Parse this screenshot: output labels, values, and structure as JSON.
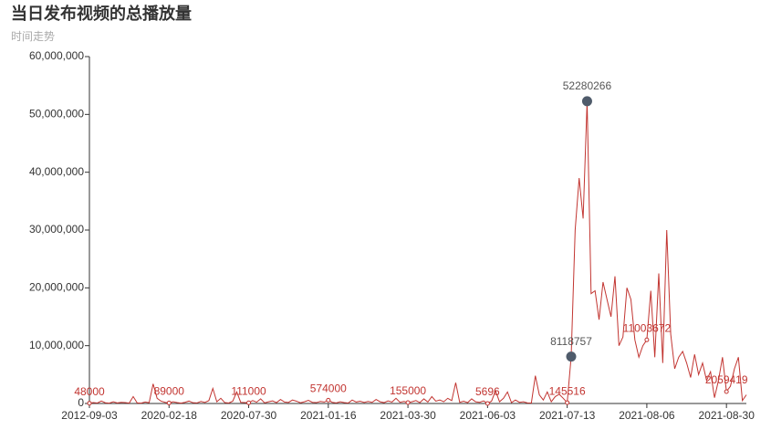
{
  "chart_data": {
    "type": "line",
    "title": "当日发布视频的总播放量",
    "subtitle": "时间走势",
    "color": "#c23531",
    "categories": [
      "2012-09-03",
      null,
      null,
      null,
      null,
      null,
      null,
      null,
      null,
      null,
      null,
      null,
      null,
      null,
      null,
      null,
      null,
      null,
      null,
      null,
      "2020-02-18",
      null,
      null,
      null,
      null,
      null,
      null,
      null,
      null,
      null,
      null,
      null,
      null,
      null,
      null,
      null,
      null,
      null,
      null,
      null,
      "2020-07-30",
      null,
      null,
      null,
      null,
      null,
      null,
      null,
      null,
      null,
      null,
      null,
      null,
      null,
      null,
      null,
      null,
      null,
      null,
      null,
      "2021-01-16",
      null,
      null,
      null,
      null,
      null,
      null,
      null,
      null,
      null,
      null,
      null,
      null,
      null,
      null,
      null,
      null,
      null,
      null,
      null,
      "2021-03-30",
      null,
      null,
      null,
      null,
      null,
      null,
      null,
      null,
      null,
      null,
      null,
      null,
      null,
      null,
      null,
      null,
      null,
      null,
      null,
      "2021-06-03",
      null,
      null,
      null,
      null,
      null,
      null,
      null,
      null,
      null,
      null,
      null,
      null,
      null,
      null,
      null,
      null,
      null,
      null,
      null,
      "2021-07-13",
      null,
      null,
      null,
      null,
      null,
      null,
      null,
      null,
      null,
      null,
      null,
      null,
      null,
      null,
      null,
      null,
      null,
      null,
      null,
      "2021-08-06",
      null,
      null,
      null,
      null,
      null,
      null,
      null,
      null,
      null,
      null,
      null,
      null,
      null,
      null,
      null,
      null,
      null,
      null,
      null,
      "2021-08-30",
      null,
      null,
      null,
      null,
      null
    ],
    "values": [
      48000,
      150000,
      80000,
      420000,
      120000,
      60000,
      300000,
      90000,
      200000,
      150000,
      70000,
      1200000,
      100000,
      60000,
      250000,
      130000,
      3400000,
      900000,
      400000,
      200000,
      89000,
      300000,
      150000,
      60000,
      200000,
      420000,
      130000,
      90000,
      350000,
      180000,
      500000,
      2600000,
      300000,
      900000,
      150000,
      80000,
      400000,
      2000000,
      200000,
      150000,
      111000,
      500000,
      220000,
      800000,
      100000,
      300000,
      450000,
      150000,
      700000,
      250000,
      180000,
      600000,
      400000,
      120000,
      300000,
      550000,
      200000,
      150000,
      350000,
      250000,
      574000,
      200000,
      100000,
      300000,
      150000,
      80000,
      600000,
      250000,
      400000,
      180000,
      350000,
      200000,
      700000,
      300000,
      150000,
      450000,
      250000,
      900000,
      200000,
      350000,
      155000,
      300000,
      500000,
      150000,
      800000,
      250000,
      1200000,
      400000,
      600000,
      300000,
      900000,
      500000,
      3600000,
      200000,
      400000,
      150000,
      800000,
      300000,
      200000,
      450000,
      5696,
      400000,
      2200000,
      300000,
      900000,
      2000000,
      150000,
      600000,
      200000,
      300000,
      100000,
      80000,
      4800000,
      1500000,
      600000,
      2000000,
      300000,
      1200000,
      1600000,
      900000,
      145516,
      8118757,
      30000000,
      39000000,
      32000000,
      52280266,
      19000000,
      19500000,
      14500000,
      21000000,
      18000000,
      15000000,
      22000000,
      10000000,
      11500000,
      20000000,
      18000000,
      11000000,
      8000000,
      10000000,
      11003672,
      19500000,
      8000000,
      22500000,
      7000000,
      30000000,
      12000000,
      6000000,
      8000000,
      9000000,
      7000000,
      4500000,
      8500000,
      5000000,
      7000000,
      4000000,
      5500000,
      1000000,
      4000000,
      8000000,
      2059419,
      3000000,
      6000000,
      8000000,
      500000,
      1500000
    ],
    "ylim": [
      0,
      60000000
    ],
    "yticks": [
      0,
      {
        "value": 10000000,
        "label": "10,000,000"
      },
      {
        "value": 20000000,
        "label": "20,000,000"
      },
      {
        "value": 30000000,
        "label": "30,000,000"
      },
      {
        "value": 40000000,
        "label": "40,000,000"
      },
      {
        "value": 50000000,
        "label": "50,000,000"
      },
      {
        "value": 60000000,
        "label": "60,000,000"
      }
    ]
  }
}
